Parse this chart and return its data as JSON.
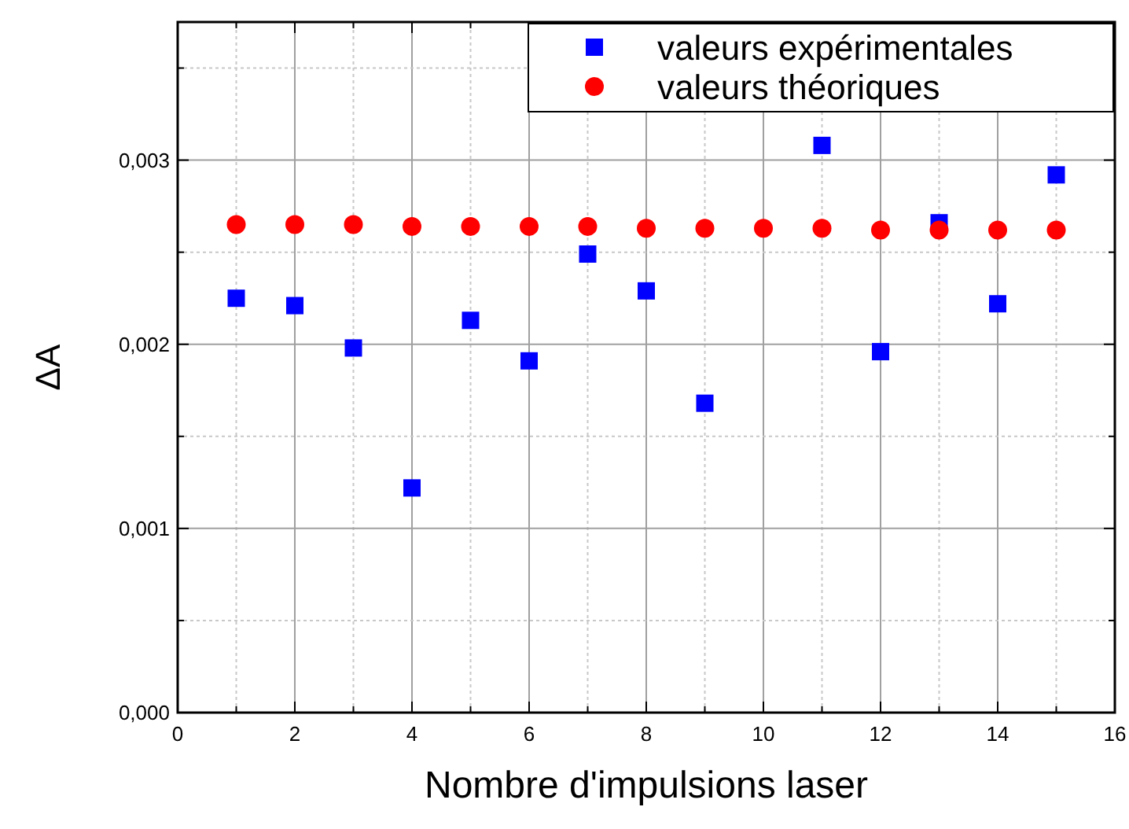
{
  "chart_data": {
    "type": "scatter",
    "xlabel": "Nombre d'impulsions laser",
    "ylabel": "ΔA",
    "x": [
      1,
      2,
      3,
      4,
      5,
      6,
      7,
      8,
      9,
      10,
      11,
      12,
      13,
      14,
      15
    ],
    "series": [
      {
        "name": "valeurs expérimentales",
        "color": "#0000ff",
        "marker": "square",
        "values": [
          0.00225,
          0.00221,
          0.00198,
          0.00122,
          0.00213,
          0.00191,
          0.00249,
          0.00229,
          0.00168,
          null,
          0.00308,
          0.00196,
          0.00266,
          0.00222,
          0.00292
        ]
      },
      {
        "name": "valeurs théoriques",
        "color": "#ff0000",
        "marker": "circle",
        "values": [
          0.00265,
          0.00265,
          0.00265,
          0.00264,
          0.00264,
          0.00264,
          0.00264,
          0.00263,
          0.00263,
          0.00263,
          0.00263,
          0.00262,
          0.00262,
          0.00262,
          0.00262
        ]
      }
    ],
    "xlim": [
      0,
      16
    ],
    "xticks": [
      0,
      {
        "value": 1,
        "label": null
      },
      2,
      {
        "value": 3,
        "label": null
      },
      4,
      {
        "value": 5,
        "label": null
      },
      6,
      {
        "value": 7,
        "label": null
      },
      8,
      {
        "value": 9,
        "label": null
      },
      10,
      {
        "value": 11,
        "label": null
      },
      12,
      {
        "value": 13,
        "label": null
      },
      14,
      {
        "value": 15,
        "label": null
      },
      16
    ],
    "ylim": [
      0,
      0.00375
    ],
    "yticks": [
      {
        "value": 0,
        "label": "0,000"
      },
      {
        "value": 0.0005,
        "label": null
      },
      {
        "value": 0.001,
        "label": "0,001"
      },
      {
        "value": 0.0015,
        "label": null
      },
      {
        "value": 0.002,
        "label": "0,002"
      },
      {
        "value": 0.0025,
        "label": null
      },
      {
        "value": 0.003,
        "label": "0,003"
      },
      {
        "value": 0.0035,
        "label": null
      }
    ],
    "grid": true,
    "legend": "top right"
  }
}
